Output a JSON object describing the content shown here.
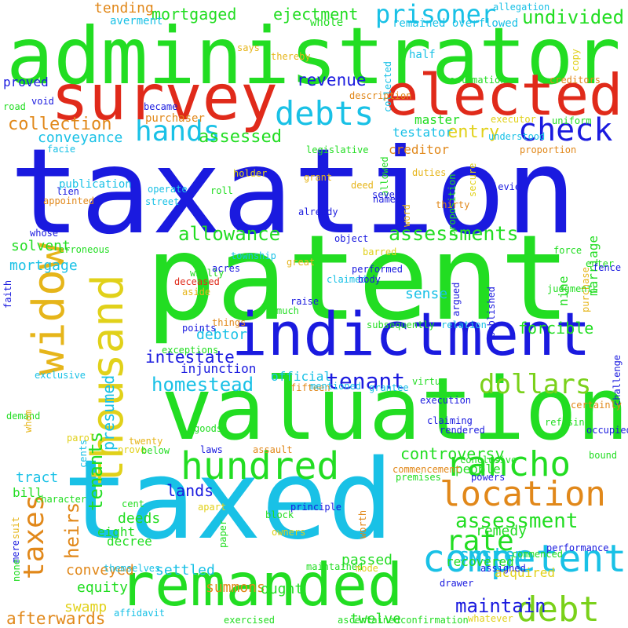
{
  "colors": {
    "blue": "#1a1adf",
    "green": "#22dd22",
    "lime": "#7ad11a",
    "cyan": "#19c1e6",
    "red": "#e02a1a",
    "orange": "#e1881a",
    "yellow": "#e1d11a",
    "gold": "#e6b51a"
  },
  "words": [
    {
      "text": "taxation",
      "color": "blue"
    },
    {
      "text": "patent",
      "color": "green"
    },
    {
      "text": "taxed",
      "color": "cyan"
    },
    {
      "text": "administrator",
      "color": "green"
    },
    {
      "text": "valuation",
      "color": "green"
    },
    {
      "text": "indictment",
      "color": "blue"
    },
    {
      "text": "survey",
      "color": "red"
    },
    {
      "text": "remanded",
      "color": "green"
    },
    {
      "text": "elected",
      "color": "red"
    },
    {
      "text": "widow",
      "color": "gold"
    },
    {
      "text": "thousand",
      "color": "yellow"
    },
    {
      "text": "hundred",
      "color": "green"
    },
    {
      "text": "competent",
      "color": "cyan"
    },
    {
      "text": "location",
      "color": "orange"
    },
    {
      "text": "rancho",
      "color": "green"
    },
    {
      "text": "debt",
      "color": "lime"
    },
    {
      "text": "debts",
      "color": "cyan"
    },
    {
      "text": "check",
      "color": "blue"
    },
    {
      "text": "hands",
      "color": "cyan"
    },
    {
      "text": "rate",
      "color": "green"
    },
    {
      "text": "taxes",
      "color": "orange"
    },
    {
      "text": "dollars",
      "color": "lime"
    },
    {
      "text": "prisoner",
      "color": "cyan"
    },
    {
      "text": "tenant",
      "color": "blue"
    },
    {
      "text": "assessment",
      "color": "green"
    },
    {
      "text": "assessments",
      "color": "green"
    },
    {
      "text": "allowance",
      "color": "green"
    },
    {
      "text": "homestead",
      "color": "cyan"
    },
    {
      "text": "heirs",
      "color": "orange"
    },
    {
      "text": "maintain",
      "color": "blue"
    },
    {
      "text": "system",
      "color": "cyan"
    },
    {
      "text": "tenants",
      "color": "green"
    },
    {
      "text": "undivided",
      "color": "green"
    },
    {
      "text": "collection",
      "color": "orange"
    },
    {
      "text": "entry",
      "color": "yellow"
    },
    {
      "text": "assessed",
      "color": "green"
    },
    {
      "text": "revenue",
      "color": "blue"
    },
    {
      "text": "intestate",
      "color": "blue"
    },
    {
      "text": "afterwards",
      "color": "orange"
    },
    {
      "text": "forcible",
      "color": "green"
    },
    {
      "text": "lands",
      "color": "blue"
    },
    {
      "text": "mortgaged",
      "color": "green"
    },
    {
      "text": "ejectment",
      "color": "green"
    },
    {
      "text": "controversy",
      "color": "green"
    },
    {
      "text": "presumed",
      "color": "cyan"
    },
    {
      "text": "conveyance",
      "color": "cyan"
    },
    {
      "text": "solvent",
      "color": "green"
    },
    {
      "text": "tending",
      "color": "orange"
    },
    {
      "text": "mortgage",
      "color": "cyan"
    },
    {
      "text": "tract",
      "color": "cyan"
    },
    {
      "text": "twelve",
      "color": "green"
    },
    {
      "text": "summons",
      "color": "orange"
    },
    {
      "text": "deeds",
      "color": "green"
    },
    {
      "text": "equity",
      "color": "green"
    },
    {
      "text": "swamp",
      "color": "yellow"
    },
    {
      "text": "debtor",
      "color": "cyan"
    },
    {
      "text": "sense",
      "color": "cyan"
    },
    {
      "text": "remedy",
      "color": "green"
    },
    {
      "text": "passed",
      "color": "green"
    },
    {
      "text": "ought",
      "color": "green"
    },
    {
      "text": "conveyed",
      "color": "orange"
    },
    {
      "text": "settled",
      "color": "cyan"
    },
    {
      "text": "acquired",
      "color": "yellow"
    },
    {
      "text": "recovered",
      "color": "green"
    },
    {
      "text": "creditor",
      "color": "orange"
    },
    {
      "text": "testator",
      "color": "cyan"
    },
    {
      "text": "master",
      "color": "green"
    },
    {
      "text": "proved",
      "color": "blue"
    },
    {
      "text": "marriage",
      "color": "green"
    },
    {
      "text": "nine",
      "color": "green"
    },
    {
      "text": "people",
      "color": "green"
    },
    {
      "text": "eight",
      "color": "green"
    },
    {
      "text": "decree",
      "color": "green"
    },
    {
      "text": "bill",
      "color": "green"
    },
    {
      "text": "injunction",
      "color": "blue"
    },
    {
      "text": "official",
      "color": "cyan"
    },
    {
      "text": "publication",
      "color": "cyan"
    },
    {
      "text": "purchaser",
      "color": "orange"
    },
    {
      "text": "whole",
      "color": "green"
    },
    {
      "text": "averment",
      "color": "cyan"
    },
    {
      "text": "half",
      "color": "cyan"
    },
    {
      "text": "remained overflowed",
      "color": "cyan"
    },
    {
      "text": "allegation",
      "color": "cyan"
    },
    {
      "text": "collected",
      "color": "cyan"
    },
    {
      "text": "copy",
      "color": "yellow"
    },
    {
      "text": "says",
      "color": "gold"
    },
    {
      "text": "thereby",
      "color": "gold"
    },
    {
      "text": "creditors",
      "color": "orange"
    },
    {
      "text": "reclamation",
      "color": "green"
    },
    {
      "text": "description",
      "color": "orange"
    },
    {
      "text": "executor",
      "color": "yellow"
    },
    {
      "text": "uniform",
      "color": "green"
    },
    {
      "text": "road",
      "color": "green"
    },
    {
      "text": "void",
      "color": "blue"
    },
    {
      "text": "became",
      "color": "blue"
    },
    {
      "text": "facie",
      "color": "cyan"
    },
    {
      "text": "legislative",
      "color": "green"
    },
    {
      "text": "understood",
      "color": "cyan"
    },
    {
      "text": "proportion",
      "color": "orange"
    },
    {
      "text": "allowed",
      "color": "green"
    },
    {
      "text": "proposition",
      "color": "green"
    },
    {
      "text": "holder",
      "color": "yellow"
    },
    {
      "text": "grant",
      "color": "gold"
    },
    {
      "text": "duties",
      "color": "gold"
    },
    {
      "text": "secure",
      "color": "yellow"
    },
    {
      "text": "deed",
      "color": "gold"
    },
    {
      "text": "seven",
      "color": "blue"
    },
    {
      "text": "named",
      "color": "blue"
    },
    {
      "text": "word",
      "color": "gold"
    },
    {
      "text": "levied",
      "color": "blue"
    },
    {
      "text": "thirty",
      "color": "orange"
    },
    {
      "text": "operate",
      "color": "cyan"
    },
    {
      "text": "roll",
      "color": "green"
    },
    {
      "text": "street",
      "color": "cyan"
    },
    {
      "text": "lien",
      "color": "blue"
    },
    {
      "text": "appointed",
      "color": "orange"
    },
    {
      "text": "already",
      "color": "blue"
    },
    {
      "text": "whose",
      "color": "blue"
    },
    {
      "text": "erroneous",
      "color": "green"
    },
    {
      "text": "object",
      "color": "blue"
    },
    {
      "text": "barred",
      "color": "yellow"
    },
    {
      "text": "force",
      "color": "green"
    },
    {
      "text": "enter",
      "color": "green"
    },
    {
      "text": "fence",
      "color": "blue"
    },
    {
      "text": "township",
      "color": "cyan"
    },
    {
      "text": "faith",
      "color": "blue"
    },
    {
      "text": "wholly",
      "color": "green"
    },
    {
      "text": "deceased",
      "color": "red"
    },
    {
      "text": "aside",
      "color": "gold"
    },
    {
      "text": "acres",
      "color": "blue"
    },
    {
      "text": "great",
      "color": "gold"
    },
    {
      "text": "performed",
      "color": "blue"
    },
    {
      "text": "claimed",
      "color": "cyan"
    },
    {
      "text": "body",
      "color": "blue"
    },
    {
      "text": "argued",
      "color": "blue"
    },
    {
      "text": "published",
      "color": "blue"
    },
    {
      "text": "purchase",
      "color": "gold"
    },
    {
      "text": "judgments",
      "color": "green"
    },
    {
      "text": "raise",
      "color": "blue"
    },
    {
      "text": "much",
      "color": "green"
    },
    {
      "text": "things",
      "color": "orange"
    },
    {
      "text": "points",
      "color": "blue"
    },
    {
      "text": "subsequently",
      "color": "green"
    },
    {
      "text": "relation",
      "color": "cyan"
    },
    {
      "text": "challenge",
      "color": "blue"
    },
    {
      "text": "exceptions",
      "color": "green"
    },
    {
      "text": "exclusive",
      "color": "cyan"
    },
    {
      "text": "demand",
      "color": "green"
    },
    {
      "text": "whom",
      "color": "gold"
    },
    {
      "text": "cents",
      "color": "cyan"
    },
    {
      "text": "parol",
      "color": "yellow"
    },
    {
      "text": "goods",
      "color": "green"
    },
    {
      "text": "fifteen",
      "color": "orange"
    },
    {
      "text": "mentioned",
      "color": "cyan"
    },
    {
      "text": "grantee",
      "color": "cyan"
    },
    {
      "text": "virtue",
      "color": "green"
    },
    {
      "text": "execution",
      "color": "blue"
    },
    {
      "text": "certainly",
      "color": "orange"
    },
    {
      "text": "claiming",
      "color": "blue"
    },
    {
      "text": "refusing",
      "color": "green"
    },
    {
      "text": "rendered",
      "color": "blue"
    },
    {
      "text": "occupied",
      "color": "blue"
    },
    {
      "text": "twenty",
      "color": "gold"
    },
    {
      "text": "prove",
      "color": "yellow"
    },
    {
      "text": "below",
      "color": "green"
    },
    {
      "text": "laws",
      "color": "blue"
    },
    {
      "text": "assault",
      "color": "orange"
    },
    {
      "text": "conclusive",
      "color": "green"
    },
    {
      "text": "bound",
      "color": "green"
    },
    {
      "text": "commencement",
      "color": "orange"
    },
    {
      "text": "premises",
      "color": "green"
    },
    {
      "text": "powers",
      "color": "blue"
    },
    {
      "text": "cent",
      "color": "green"
    },
    {
      "text": "apart",
      "color": "yellow"
    },
    {
      "text": "principle",
      "color": "blue"
    },
    {
      "text": "character",
      "color": "green"
    },
    {
      "text": "worth",
      "color": "orange"
    },
    {
      "text": "block",
      "color": "green"
    },
    {
      "text": "owners",
      "color": "yellow"
    },
    {
      "text": "paper",
      "color": "green"
    },
    {
      "text": "suit",
      "color": "gold"
    },
    {
      "text": "mere",
      "color": "blue"
    },
    {
      "text": "none",
      "color": "green"
    },
    {
      "text": "themselves",
      "color": "cyan"
    },
    {
      "text": "maintained",
      "color": "green"
    },
    {
      "text": "mode",
      "color": "yellow"
    },
    {
      "text": "assigned",
      "color": "blue"
    },
    {
      "text": "commenced",
      "color": "green"
    },
    {
      "text": "performance",
      "color": "blue"
    },
    {
      "text": "drawer",
      "color": "blue"
    },
    {
      "text": "affidavit",
      "color": "cyan"
    },
    {
      "text": "exercised",
      "color": "green"
    },
    {
      "text": "ascertained",
      "color": "green"
    },
    {
      "text": "confirmation",
      "color": "green"
    },
    {
      "text": "whatever",
      "color": "yellow"
    },
    {
      "text": "convey",
      "color": "cyan"
    },
    {
      "text": "prescribed",
      "color": "green"
    }
  ]
}
